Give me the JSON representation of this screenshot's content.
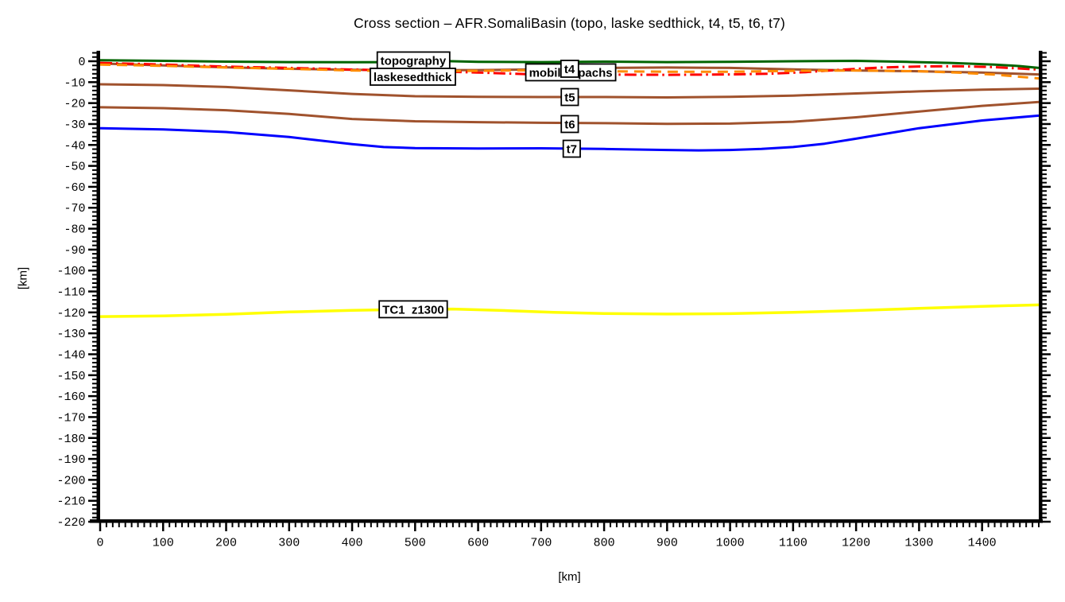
{
  "chart_data": {
    "type": "line",
    "title": "Cross section – AFR.SomaliBasin (topo, laske sedthick, t4, t5, t6, t7)",
    "xlabel": "[km]",
    "ylabel": "[km]",
    "xlim": [
      0,
      1490
    ],
    "ylim": [
      -220,
      5
    ],
    "x_major_tick": 100,
    "x_minor_tick": 10,
    "y_major_tick": 10,
    "y_minor_tick": 2,
    "grid": false,
    "background": "#ffffff",
    "axis_color": "#000000",
    "x_tick_labels": [
      "0",
      "100",
      "200",
      "300",
      "400",
      "500",
      "600",
      "700",
      "800",
      "900",
      "1000",
      "1100",
      "1200",
      "1300",
      "1400"
    ],
    "y_tick_labels": [
      "0",
      "-10",
      "-20",
      "-30",
      "-40",
      "-50",
      "-60",
      "-70",
      "-80",
      "-90",
      "-100",
      "-110",
      "-120",
      "-130",
      "-140",
      "-150",
      "-160",
      "-170",
      "-180",
      "-190",
      "-200",
      "-210",
      "-220"
    ],
    "series": [
      {
        "name": "topography",
        "color": "#006400",
        "style": "solid",
        "width": 3,
        "points": [
          [
            0,
            0.5
          ],
          [
            100,
            0.2
          ],
          [
            200,
            -0.2
          ],
          [
            300,
            -0.4
          ],
          [
            400,
            -0.5
          ],
          [
            500,
            -0.4
          ],
          [
            545,
            0.1
          ],
          [
            600,
            -0.3
          ],
          [
            700,
            -0.4
          ],
          [
            800,
            -0.2
          ],
          [
            900,
            -0.4
          ],
          [
            1000,
            -0.3
          ],
          [
            1100,
            0.0
          ],
          [
            1200,
            0.2
          ],
          [
            1280,
            -0.3
          ],
          [
            1350,
            -0.8
          ],
          [
            1420,
            -1.6
          ],
          [
            1460,
            -2.3
          ],
          [
            1490,
            -3.2
          ]
        ]
      },
      {
        "name": "laskesedthick",
        "color": "#ff8c00",
        "style": "dashed",
        "width": 3,
        "points": [
          [
            0,
            -1.6
          ],
          [
            100,
            -2.2
          ],
          [
            200,
            -3.0
          ],
          [
            300,
            -3.6
          ],
          [
            400,
            -4.4
          ],
          [
            500,
            -4.8
          ],
          [
            600,
            -4.6
          ],
          [
            700,
            -4.2
          ],
          [
            800,
            -4.8
          ],
          [
            900,
            -5.0
          ],
          [
            1000,
            -5.0
          ],
          [
            1100,
            -4.6
          ],
          [
            1200,
            -4.4
          ],
          [
            1300,
            -4.8
          ],
          [
            1360,
            -5.4
          ],
          [
            1420,
            -6.4
          ],
          [
            1490,
            -8.2
          ]
        ]
      },
      {
        "name": "mobilisopachs",
        "color": "#ff0000",
        "style": "dashdot",
        "width": 3,
        "points": [
          [
            0,
            -0.8
          ],
          [
            100,
            -1.6
          ],
          [
            200,
            -2.6
          ],
          [
            300,
            -3.2
          ],
          [
            400,
            -4.0
          ],
          [
            500,
            -4.6
          ],
          [
            600,
            -5.4
          ],
          [
            700,
            -6.4
          ],
          [
            800,
            -6.4
          ],
          [
            900,
            -6.5
          ],
          [
            1000,
            -6.3
          ],
          [
            1060,
            -6.0
          ],
          [
            1120,
            -5.2
          ],
          [
            1180,
            -4.0
          ],
          [
            1240,
            -3.0
          ],
          [
            1300,
            -2.5
          ],
          [
            1360,
            -2.4
          ],
          [
            1420,
            -2.8
          ],
          [
            1490,
            -4.0
          ]
        ]
      },
      {
        "name": "t4",
        "color": "#a0522d",
        "style": "solid",
        "width": 3,
        "points": [
          [
            0,
            -1.1
          ],
          [
            100,
            -2.0
          ],
          [
            200,
            -2.9
          ],
          [
            300,
            -3.6
          ],
          [
            400,
            -4.1
          ],
          [
            500,
            -4.3
          ],
          [
            600,
            -4.2
          ],
          [
            700,
            -3.9
          ],
          [
            800,
            -3.2
          ],
          [
            900,
            -3.0
          ],
          [
            1000,
            -3.2
          ],
          [
            1100,
            -3.9
          ],
          [
            1200,
            -4.4
          ],
          [
            1300,
            -4.8
          ],
          [
            1400,
            -5.4
          ],
          [
            1490,
            -6.3
          ]
        ]
      },
      {
        "name": "t5",
        "color": "#a0522d",
        "style": "solid",
        "width": 3,
        "points": [
          [
            0,
            -11.0
          ],
          [
            100,
            -11.4
          ],
          [
            200,
            -12.3
          ],
          [
            300,
            -13.9
          ],
          [
            400,
            -15.6
          ],
          [
            500,
            -16.7
          ],
          [
            600,
            -17.0
          ],
          [
            700,
            -17.1
          ],
          [
            800,
            -17.1
          ],
          [
            900,
            -17.3
          ],
          [
            1000,
            -17.0
          ],
          [
            1100,
            -16.4
          ],
          [
            1200,
            -15.4
          ],
          [
            1300,
            -14.4
          ],
          [
            1400,
            -13.6
          ],
          [
            1490,
            -13.1
          ]
        ]
      },
      {
        "name": "t6",
        "color": "#a0522d",
        "style": "solid",
        "width": 3,
        "points": [
          [
            0,
            -22.0
          ],
          [
            100,
            -22.4
          ],
          [
            200,
            -23.4
          ],
          [
            300,
            -25.2
          ],
          [
            400,
            -27.6
          ],
          [
            500,
            -28.7
          ],
          [
            600,
            -29.1
          ],
          [
            700,
            -29.4
          ],
          [
            800,
            -29.6
          ],
          [
            900,
            -29.9
          ],
          [
            1000,
            -29.8
          ],
          [
            1100,
            -28.9
          ],
          [
            1200,
            -26.8
          ],
          [
            1300,
            -24.0
          ],
          [
            1400,
            -21.3
          ],
          [
            1490,
            -19.5
          ]
        ]
      },
      {
        "name": "t7",
        "color": "#0000ff",
        "style": "solid",
        "width": 3,
        "points": [
          [
            0,
            -32.0
          ],
          [
            100,
            -32.6
          ],
          [
            200,
            -33.8
          ],
          [
            300,
            -36.2
          ],
          [
            400,
            -39.6
          ],
          [
            450,
            -41.0
          ],
          [
            500,
            -41.5
          ],
          [
            600,
            -41.7
          ],
          [
            700,
            -41.6
          ],
          [
            800,
            -41.9
          ],
          [
            900,
            -42.4
          ],
          [
            950,
            -42.6
          ],
          [
            1000,
            -42.4
          ],
          [
            1050,
            -41.9
          ],
          [
            1100,
            -41.0
          ],
          [
            1150,
            -39.4
          ],
          [
            1200,
            -37.0
          ],
          [
            1300,
            -32.0
          ],
          [
            1400,
            -28.3
          ],
          [
            1490,
            -26.0
          ]
        ]
      },
      {
        "name": "TC1  z1300",
        "color": "#ffff00",
        "style": "solid",
        "width": 3.5,
        "points": [
          [
            0,
            -122.0
          ],
          [
            100,
            -121.7
          ],
          [
            200,
            -120.9
          ],
          [
            300,
            -119.8
          ],
          [
            400,
            -119.0
          ],
          [
            500,
            -118.5
          ],
          [
            560,
            -118.4
          ],
          [
            650,
            -119.2
          ],
          [
            720,
            -120.0
          ],
          [
            800,
            -120.5
          ],
          [
            900,
            -120.8
          ],
          [
            1000,
            -120.6
          ],
          [
            1100,
            -120.0
          ],
          [
            1200,
            -119.1
          ],
          [
            1300,
            -118.1
          ],
          [
            1400,
            -117.1
          ],
          [
            1490,
            -116.4
          ]
        ]
      }
    ],
    "labels": [
      {
        "text": "topography",
        "x": 497,
        "y": 0.4
      },
      {
        "text": "laskesedthick",
        "x": 496,
        "y": -7.4
      },
      {
        "text": "mobilisopachs",
        "x": 747,
        "y": -5.3
      },
      {
        "text": "t4",
        "x": 745,
        "y": -3.6
      },
      {
        "text": "t5",
        "x": 745.5,
        "y": -17.1
      },
      {
        "text": "t6",
        "x": 745.5,
        "y": -30.0
      },
      {
        "text": "t7",
        "x": 748.6,
        "y": -41.8
      },
      {
        "text": "TC1  z1300",
        "x": 497,
        "y": -118.5
      }
    ]
  }
}
